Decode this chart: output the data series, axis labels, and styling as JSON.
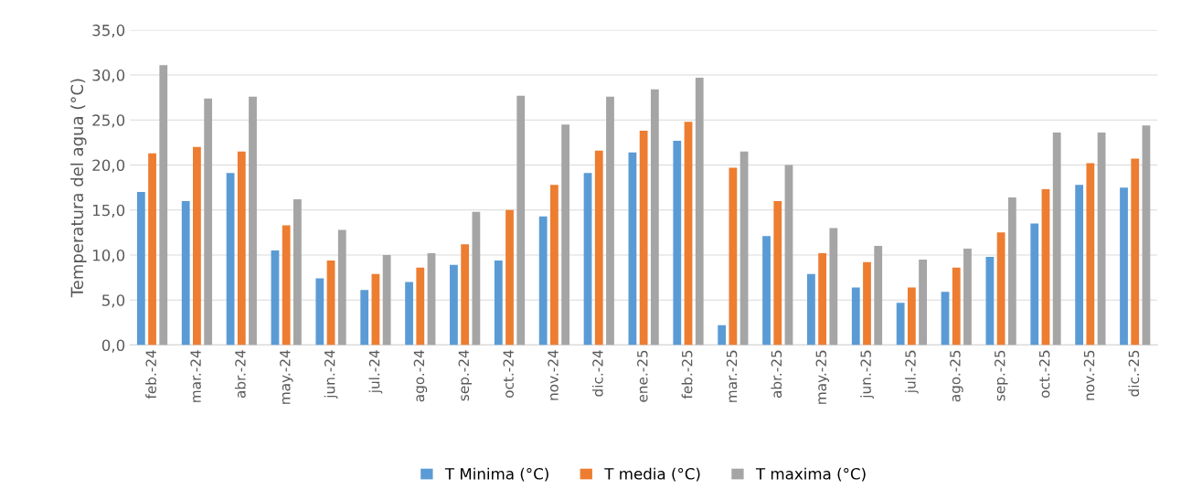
{
  "chart_data": {
    "type": "bar",
    "ylabel": "Temperatura del agua (°C)",
    "categories": [
      "feb.-24",
      "mar.-24",
      "abr.-24",
      "may.-24",
      "jun.-24",
      "jul.-24",
      "ago.-24",
      "sep.-24",
      "oct.-24",
      "nov.-24",
      "dic.-24",
      "ene.-25",
      "feb.-25",
      "mar.-25",
      "abr.-25",
      "may.-25",
      "jun.-25",
      "jul.-25",
      "ago.-25",
      "sep.-25",
      "oct.-25",
      "nov.-25",
      "dic.-25"
    ],
    "series": [
      {
        "name": "T Minima (°C)",
        "color": "#5b9bd5",
        "values": [
          17.0,
          16.0,
          19.1,
          10.5,
          7.4,
          6.1,
          7.0,
          8.9,
          9.4,
          14.3,
          19.1,
          21.4,
          22.7,
          2.2,
          12.1,
          7.9,
          6.4,
          4.7,
          5.9,
          9.8,
          13.5,
          17.8,
          17.5
        ]
      },
      {
        "name": "T media (°C)",
        "color": "#ed7d31",
        "values": [
          21.3,
          22.0,
          21.5,
          13.3,
          9.4,
          7.9,
          8.6,
          11.2,
          15.0,
          17.8,
          21.6,
          23.8,
          24.8,
          19.7,
          16.0,
          10.2,
          9.2,
          6.4,
          8.6,
          12.5,
          17.3,
          20.2,
          20.7
        ]
      },
      {
        "name": "T maxima (°C)",
        "color": "#a5a5a5",
        "values": [
          31.1,
          27.4,
          27.6,
          16.2,
          12.8,
          10.0,
          10.2,
          14.8,
          27.7,
          24.5,
          27.6,
          28.4,
          29.7,
          21.5,
          20.0,
          13.0,
          11.0,
          9.5,
          10.7,
          16.4,
          23.6,
          23.6,
          24.4
        ]
      }
    ],
    "ylim": [
      0,
      35
    ],
    "yticks": [
      {
        "value": 0,
        "label": "0,0"
      },
      {
        "value": 5,
        "label": "5,0"
      },
      {
        "value": 10,
        "label": "10,0"
      },
      {
        "value": 15,
        "label": "15,0"
      },
      {
        "value": 20,
        "label": "20,0"
      },
      {
        "value": 25,
        "label": "25,0"
      },
      {
        "value": 30,
        "label": "30,0"
      },
      {
        "value": 35,
        "label": "35,0"
      }
    ],
    "grid": "y",
    "legend": "bottom"
  }
}
